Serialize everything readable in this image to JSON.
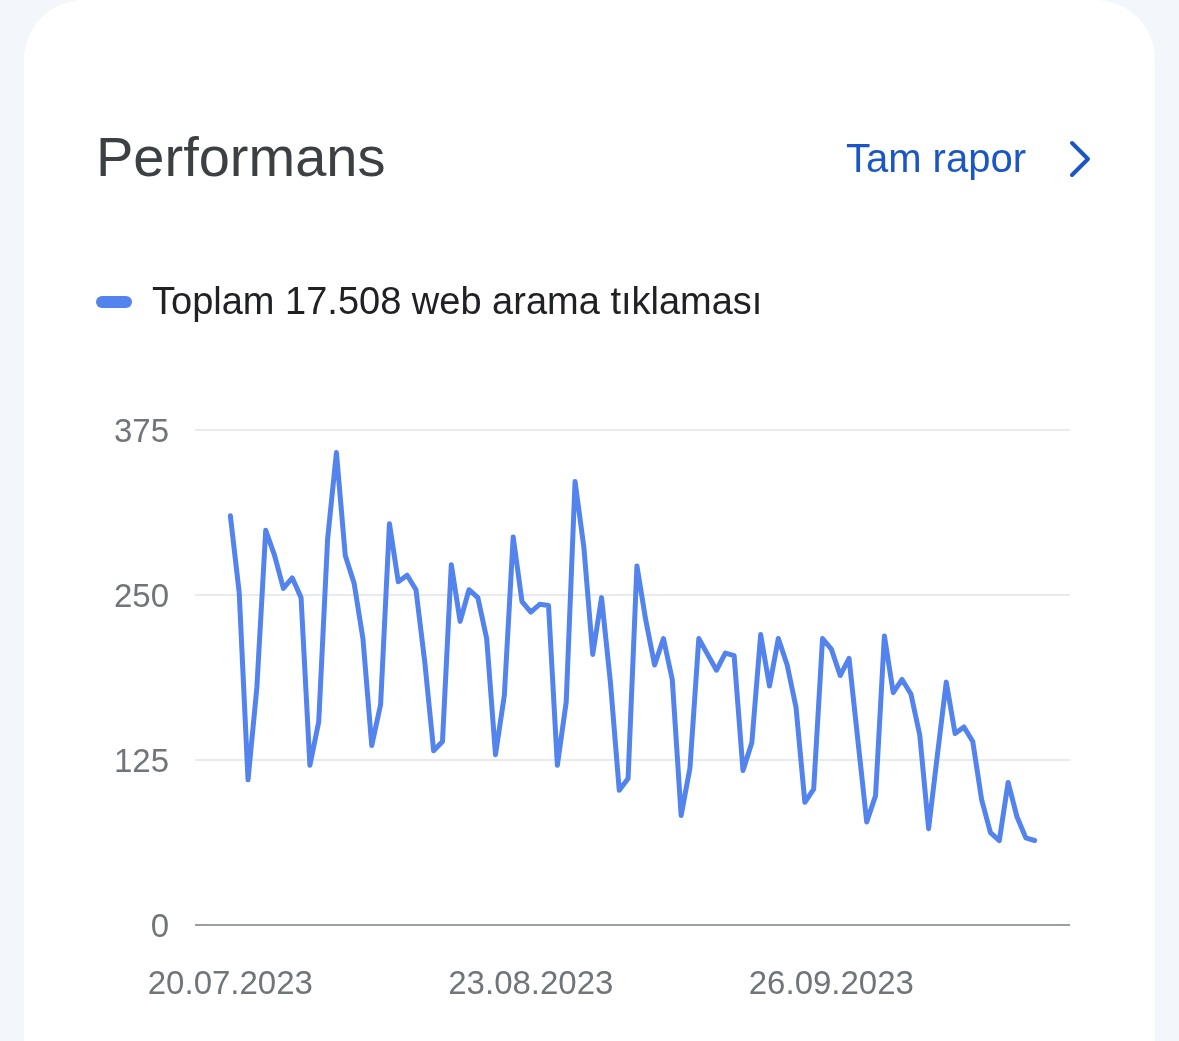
{
  "chart_data": {
    "type": "line",
    "title": "Performans",
    "annotations": [
      "Tam rapor"
    ],
    "x": [
      "2023-07-20",
      "2023-07-21",
      "2023-07-22",
      "2023-07-23",
      "2023-07-24",
      "2023-07-25",
      "2023-07-26",
      "2023-07-27",
      "2023-07-28",
      "2023-07-29",
      "2023-07-30",
      "2023-07-31",
      "2023-08-01",
      "2023-08-02",
      "2023-08-03",
      "2023-08-04",
      "2023-08-05",
      "2023-08-06",
      "2023-08-07",
      "2023-08-08",
      "2023-08-09",
      "2023-08-10",
      "2023-08-11",
      "2023-08-12",
      "2023-08-13",
      "2023-08-14",
      "2023-08-15",
      "2023-08-16",
      "2023-08-17",
      "2023-08-18",
      "2023-08-19",
      "2023-08-20",
      "2023-08-21",
      "2023-08-22",
      "2023-08-23",
      "2023-08-24",
      "2023-08-25",
      "2023-08-26",
      "2023-08-27",
      "2023-08-28",
      "2023-08-29",
      "2023-08-30",
      "2023-08-31",
      "2023-09-01",
      "2023-09-02",
      "2023-09-03",
      "2023-09-04",
      "2023-09-05",
      "2023-09-06",
      "2023-09-07",
      "2023-09-08",
      "2023-09-09",
      "2023-09-10",
      "2023-09-11",
      "2023-09-12",
      "2023-09-13",
      "2023-09-14",
      "2023-09-15",
      "2023-09-16",
      "2023-09-17",
      "2023-09-18",
      "2023-09-19",
      "2023-09-20",
      "2023-09-21",
      "2023-09-22",
      "2023-09-23",
      "2023-09-24",
      "2023-09-25",
      "2023-09-26",
      "2023-09-27",
      "2023-09-28",
      "2023-09-29",
      "2023-09-30",
      "2023-10-01",
      "2023-10-02",
      "2023-10-03",
      "2023-10-04",
      "2023-10-05",
      "2023-10-06",
      "2023-10-07",
      "2023-10-08",
      "2023-10-09",
      "2023-10-10",
      "2023-10-11",
      "2023-10-12",
      "2023-10-13",
      "2023-10-14",
      "2023-10-15",
      "2023-10-16",
      "2023-10-17",
      "2023-10-18",
      "2023-10-19"
    ],
    "series": [
      {
        "name": "Toplam 17.508 web arama tıklaması",
        "color": "#5383ec",
        "values": [
          310,
          252,
          110,
          180,
          299,
          280,
          255,
          263,
          248,
          121,
          154,
          292,
          358,
          280,
          259,
          217,
          136,
          167,
          304,
          260,
          265,
          254,
          199,
          132,
          139,
          273,
          230,
          254,
          248,
          217,
          129,
          174,
          294,
          245,
          237,
          243,
          242,
          121,
          169,
          336,
          286,
          205,
          248,
          184,
          102,
          111,
          272,
          231,
          197,
          217,
          186,
          83,
          119,
          217,
          205,
          193,
          206,
          204,
          117,
          138,
          220,
          181,
          217,
          197,
          165,
          93,
          103,
          217,
          209,
          189,
          202,
          140,
          78,
          98,
          219,
          176,
          186,
          175,
          144,
          73,
          129,
          184,
          145,
          150,
          139,
          95,
          70,
          64,
          108,
          82,
          66,
          64
        ]
      }
    ],
    "xlim": [
      "2023-07-16",
      "2023-10-23"
    ],
    "xticks": [
      {
        "value": "2023-07-20",
        "label": "20.07.2023"
      },
      {
        "value": "2023-08-23",
        "label": "23.08.2023"
      },
      {
        "value": "2023-09-26",
        "label": "26.09.2023"
      }
    ],
    "ylim": [
      0,
      375
    ],
    "yticks": [
      0,
      125,
      250,
      375
    ],
    "grid": "y",
    "legend": "top left",
    "marker": "none",
    "line_style": "solid"
  }
}
